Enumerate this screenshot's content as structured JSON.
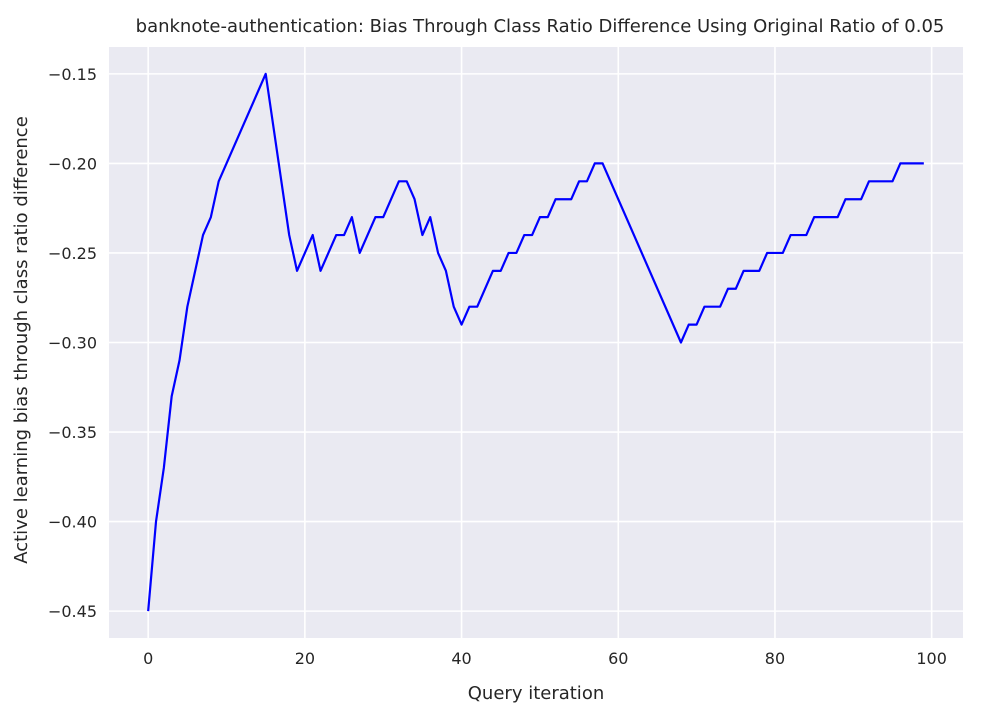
{
  "chart_data": {
    "type": "line",
    "title": "banknote-authentication: Bias Through Class Ratio Difference Using Original Ratio of 0.05",
    "xlabel": "Query iteration",
    "ylabel": "Active learning bias through class ratio difference",
    "xlim": [
      -5,
      104
    ],
    "ylim": [
      -0.465,
      -0.135
    ],
    "xticks": [
      0,
      20,
      40,
      60,
      80,
      100
    ],
    "xtick_labels": [
      "0",
      "20",
      "40",
      "60",
      "80",
      "100"
    ],
    "yticks": [
      -0.45,
      -0.4,
      -0.35,
      -0.3,
      -0.25,
      -0.2,
      -0.15
    ],
    "ytick_labels": [
      "−0.45",
      "−0.40",
      "−0.35",
      "−0.30",
      "−0.25",
      "−0.20",
      "−0.15"
    ],
    "grid": true,
    "background": "#eaeaf2",
    "grid_color": "#ffffff",
    "series": [
      {
        "color": "#0000ff",
        "x": [
          0,
          1,
          2,
          3,
          4,
          5,
          6,
          7,
          8,
          9,
          15,
          18,
          19,
          21,
          22,
          24,
          25,
          26,
          27,
          29,
          30,
          32,
          33,
          34,
          35,
          36,
          37,
          38,
          39,
          40,
          41,
          42,
          44,
          45,
          46,
          47,
          48,
          49,
          50,
          51,
          52,
          53,
          54,
          55,
          56,
          57,
          58,
          68,
          69,
          70,
          71,
          72,
          73,
          74,
          75,
          76,
          77,
          78,
          79,
          80,
          81,
          82,
          83,
          84,
          85,
          86,
          87,
          88,
          89,
          90,
          91,
          92,
          93,
          94,
          95,
          96,
          97,
          98,
          99
        ],
        "y": [
          -0.45,
          -0.4,
          -0.37,
          -0.33,
          -0.31,
          -0.28,
          -0.26,
          -0.24,
          -0.23,
          -0.21,
          -0.15,
          -0.24,
          -0.26,
          -0.24,
          -0.26,
          -0.24,
          -0.24,
          -0.23,
          -0.25,
          -0.23,
          -0.23,
          -0.21,
          -0.21,
          -0.22,
          -0.24,
          -0.23,
          -0.25,
          -0.26,
          -0.28,
          -0.29,
          -0.28,
          -0.28,
          -0.26,
          -0.26,
          -0.25,
          -0.25,
          -0.24,
          -0.24,
          -0.23,
          -0.23,
          -0.22,
          -0.22,
          -0.22,
          -0.21,
          -0.21,
          -0.2,
          -0.2,
          -0.3,
          -0.29,
          -0.29,
          -0.28,
          -0.28,
          -0.28,
          -0.27,
          -0.27,
          -0.26,
          -0.26,
          -0.26,
          -0.25,
          -0.25,
          -0.25,
          -0.24,
          -0.24,
          -0.24,
          -0.23,
          -0.23,
          -0.23,
          -0.23,
          -0.22,
          -0.22,
          -0.22,
          -0.21,
          -0.21,
          -0.21,
          -0.21,
          -0.2,
          -0.2,
          -0.2,
          -0.2
        ]
      }
    ]
  }
}
